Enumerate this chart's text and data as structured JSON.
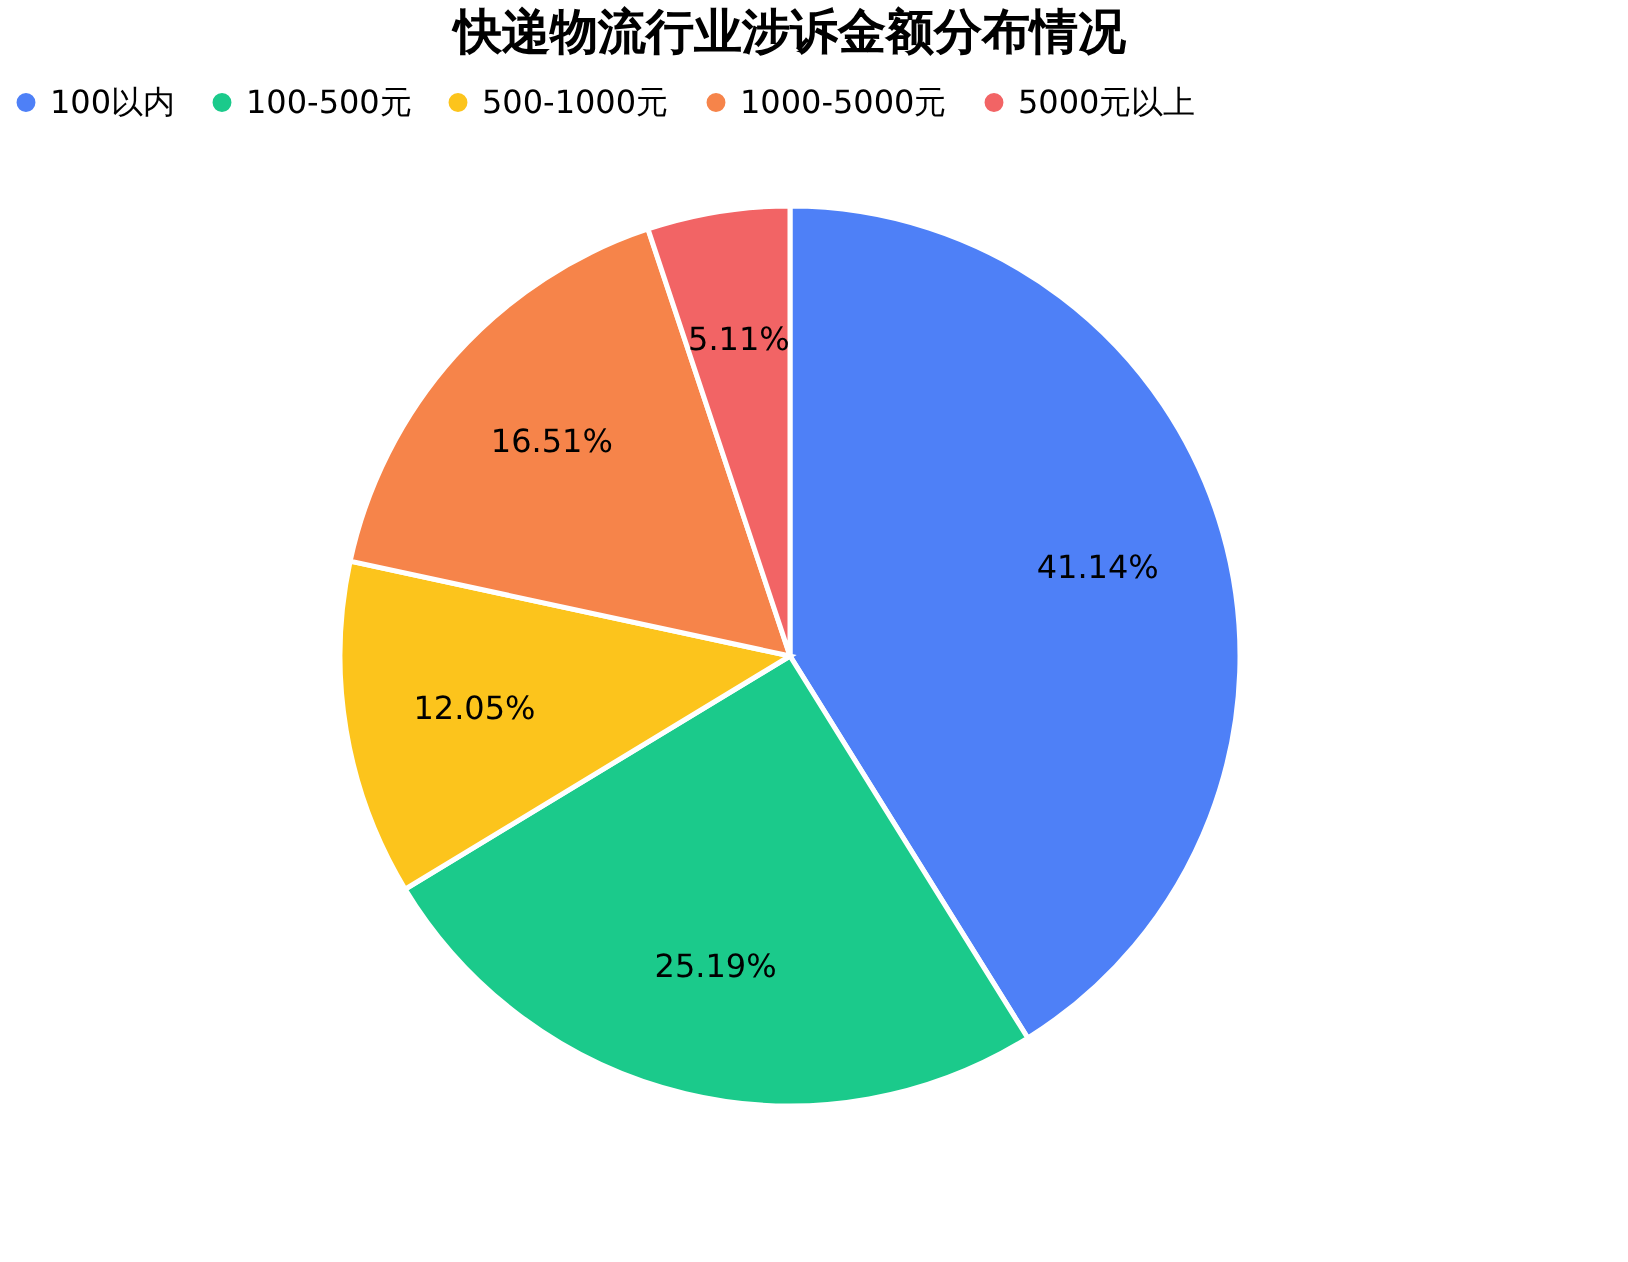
{
  "chart_data": {
    "type": "pie",
    "title": "快递物流行业涉诉金额分布情况",
    "categories": [
      "100以内",
      "100-500元",
      "500-1000元",
      "1000-5000元",
      "5000元以上"
    ],
    "values": [
      41.14,
      25.19,
      12.05,
      16.51,
      5.11
    ],
    "colors": [
      "#4e80f7",
      "#1bca8b",
      "#fcc41c",
      "#f6844a",
      "#f26465"
    ],
    "value_labels": [
      "41.14%",
      "25.19%",
      "12.05%",
      "16.51%",
      "5.11%"
    ],
    "legend": "top"
  }
}
